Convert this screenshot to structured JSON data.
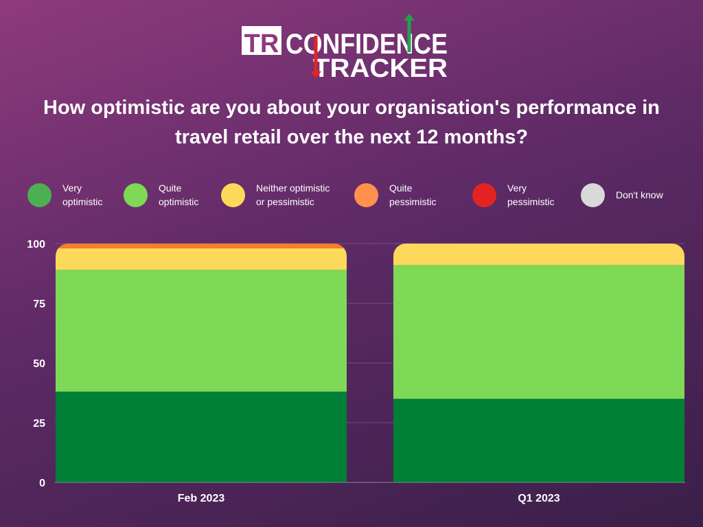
{
  "logo": {
    "mark": "TR",
    "word1": "CONFIDENCE",
    "word2": "TRACKER",
    "accent_up": "#22a24a",
    "accent_down": "#e02424"
  },
  "question": "How optimistic are you about your organisation's performance in travel retail over the next 12 months?",
  "legend": [
    {
      "label": "Very\noptimistic",
      "color": "#4caf50"
    },
    {
      "label": "Quite\noptimistic",
      "color": "#7ed957"
    },
    {
      "label": "Neither optimistic\nor pessimistic",
      "color": "#fcd95b"
    },
    {
      "label": "Quite\npessimistic",
      "color": "#ff914d"
    },
    {
      "label": "Very\npessimistic",
      "color": "#e52222"
    },
    {
      "label": "Don't know",
      "color": "#d9d9d9"
    }
  ],
  "chart_data": {
    "type": "bar",
    "stacked": true,
    "categories": [
      "Feb 2023",
      "Q1 2023"
    ],
    "ylim": [
      0,
      100
    ],
    "yticks": [
      "0",
      "25",
      "50",
      "75",
      "100"
    ],
    "grid": true,
    "series": [
      {
        "name": "Very optimistic",
        "color": "#007f36",
        "values": [
          38,
          35
        ]
      },
      {
        "name": "Quite optimistic",
        "color": "#7ed957",
        "values": [
          51,
          56
        ]
      },
      {
        "name": "Neither optimistic or pessimistic",
        "color": "#fcd95b",
        "values": [
          9,
          9
        ]
      },
      {
        "name": "Quite pessimistic",
        "color": "#f57f2a",
        "values": [
          2,
          0
        ]
      },
      {
        "name": "Very pessimistic",
        "color": "#e52222",
        "values": [
          0,
          0
        ]
      },
      {
        "name": "Don't know",
        "color": "#d9d9d9",
        "values": [
          0,
          0
        ]
      }
    ]
  }
}
